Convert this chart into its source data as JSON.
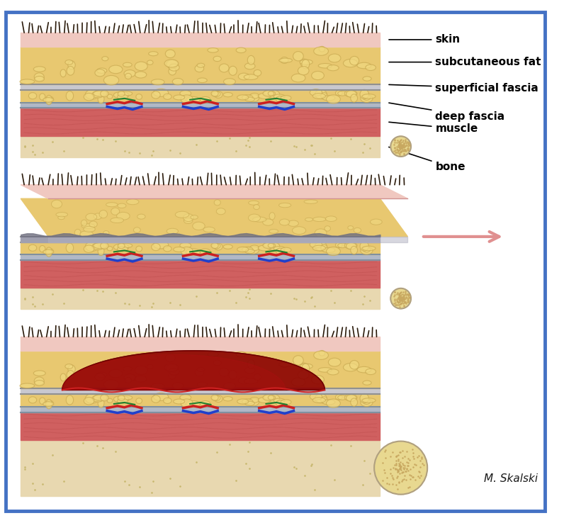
{
  "bg_color": "#ffffff",
  "border_color": "#4472c4",
  "border_lw": 3,
  "labels": {
    "skin": "skin",
    "subcut": "subcutaneous fat",
    "superficial_fascia": "superficial fascia",
    "deep_fascia": "deep fascia",
    "muscle": "muscle",
    "bone": "bone"
  },
  "colors": {
    "skin_surface": "#c8a8a0",
    "skin_pink": "#f0c8c0",
    "subcut_fat": "#e8c870",
    "superficial_fascia": "#c8c8d0",
    "deep_fascia": "#b0b8c8",
    "muscle": "#d06060",
    "bone": "#e8d8b0",
    "bone_end": "#e8d890",
    "bone_dots": "#c8a860",
    "hair": "#2a1a0a",
    "vessel_red": "#cc2020",
    "vessel_blue": "#2040cc",
    "vessel_green": "#208030",
    "hematoma": "#8b0000",
    "hematoma_dark": "#6b0000",
    "arrow_pink": "#e09090",
    "label_color": "#000000",
    "shear_gray": "#909090"
  }
}
